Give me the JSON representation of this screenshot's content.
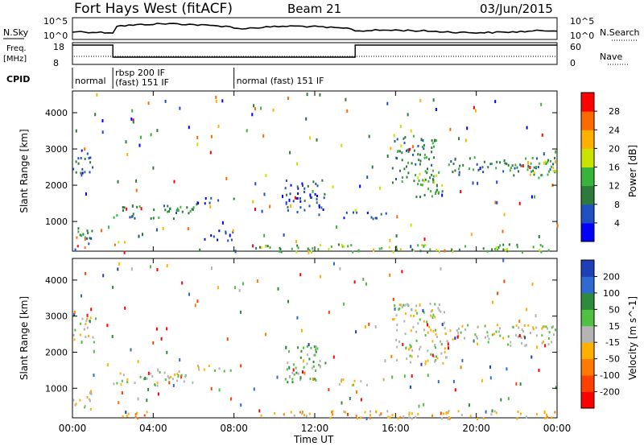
{
  "header": {
    "title": "Fort Hays West (fitACF)",
    "beam": "Beam 21",
    "date": "03/Jun/2015"
  },
  "top_panels": {
    "nsky_label": "N.Sky",
    "nsky_ticks": [
      "10^5",
      "10^0"
    ],
    "nsearch_label": "N.Search",
    "nsearch_ticks": [
      "10^5",
      "10^0"
    ],
    "freq_label": "Freq.",
    "freq_unit": "[MHz]",
    "freq_ticks": [
      "18",
      "8"
    ],
    "nave_label": "Nave",
    "nave_ticks": [
      "60",
      "0"
    ],
    "cpid_label": "CPID",
    "cpid_segments": [
      {
        "start_hr": 0,
        "end_hr": 2,
        "line1": "normal",
        "line2": ""
      },
      {
        "start_hr": 2,
        "end_hr": 8,
        "line1": "rbsp 200 IF",
        "line2": "(fast) 151 IF"
      },
      {
        "start_hr": 8,
        "end_hr": 24,
        "line1": "normal (fast) 151 IF",
        "line2": ""
      }
    ],
    "freq_steps": [
      {
        "start_hr": 0,
        "end_hr": 2,
        "mhz": 18
      },
      {
        "start_hr": 2,
        "end_hr": 14,
        "mhz": 10.5
      },
      {
        "start_hr": 14,
        "end_hr": 24,
        "mhz": 18
      }
    ]
  },
  "chart_data": [
    {
      "type": "heatmap",
      "name": "power",
      "ylabel": "Slant Range [km]",
      "yticks": [
        "1000",
        "2000",
        "3000",
        "4000"
      ],
      "ylim": [
        180,
        4600
      ],
      "xlim": [
        0,
        24
      ],
      "colorbar_label": "Power [dB]",
      "colorbar_ticks": [
        "4",
        "8",
        "12",
        "16",
        "20",
        "24",
        "28"
      ],
      "colors": [
        "#0000ff",
        "#1f4fc0",
        "#2e7a3c",
        "#38b43a",
        "#c8e400",
        "#ffb000",
        "#ff6a00",
        "#ff0000"
      ],
      "echo_regions": [
        {
          "t0": 0.0,
          "t1": 1.2,
          "r0": 2300,
          "r1": 3000,
          "level": 1
        },
        {
          "t0": 0.0,
          "t1": 1.0,
          "r0": 400,
          "r1": 1000,
          "level": 2
        },
        {
          "t0": 0.0,
          "t1": 0.6,
          "r0": 300,
          "r1": 600,
          "level": 6
        },
        {
          "t0": 2.0,
          "t1": 6.0,
          "r0": 1100,
          "r1": 1500,
          "level": 2
        },
        {
          "t0": 2.0,
          "t1": 2.6,
          "r0": 350,
          "r1": 600,
          "level": 5
        },
        {
          "t0": 6.0,
          "t1": 8.0,
          "r0": 1500,
          "r1": 1700,
          "level": 1
        },
        {
          "t0": 6.5,
          "t1": 8.0,
          "r0": 500,
          "r1": 800,
          "level": 1
        },
        {
          "t0": 10.5,
          "t1": 12.5,
          "r0": 1200,
          "r1": 2200,
          "level": 1
        },
        {
          "t0": 13.0,
          "t1": 15.5,
          "r0": 1100,
          "r1": 1300,
          "level": 1
        },
        {
          "t0": 15.8,
          "t1": 18.0,
          "r0": 2100,
          "r1": 3400,
          "level": 2
        },
        {
          "t0": 17.0,
          "t1": 18.5,
          "r0": 1700,
          "r1": 2500,
          "level": 3
        },
        {
          "t0": 18.5,
          "t1": 24.0,
          "r0": 2300,
          "r1": 2800,
          "level": 2
        },
        {
          "t0": 22.5,
          "t1": 24.0,
          "r0": 2200,
          "r1": 2700,
          "level": 4
        },
        {
          "t0": 9.0,
          "t1": 24.0,
          "r0": 180,
          "r1": 400,
          "level": 3
        }
      ]
    },
    {
      "type": "heatmap",
      "name": "velocity",
      "ylabel": "Slant Range [km]",
      "yticks": [
        "1000",
        "2000",
        "3000",
        "4000"
      ],
      "ylim": [
        180,
        4600
      ],
      "xlim": [
        0,
        24
      ],
      "xlabel": "Time UT",
      "xticks": [
        "00:00",
        "04:00",
        "08:00",
        "12:00",
        "16:00",
        "20:00",
        "00:00"
      ],
      "colorbar_label": "Velocity [m s^-1]",
      "colorbar_ticks": [
        "200",
        "100",
        "50",
        "15",
        "-15",
        "-50",
        "-100",
        "-200"
      ],
      "colors": [
        "#1f3fb8",
        "#2e6ad0",
        "#2e8a3c",
        "#50c040",
        "#b4b4b4",
        "#ffb000",
        "#ff7a00",
        "#ff4000",
        "#ff0000"
      ],
      "echo_regions": [
        {
          "t0": 0.0,
          "t1": 1.2,
          "r0": 2300,
          "r1": 3000,
          "level": 4
        },
        {
          "t0": 0.0,
          "t1": 1.0,
          "r0": 400,
          "r1": 1000,
          "level": 4
        },
        {
          "t0": 2.0,
          "t1": 6.0,
          "r0": 1100,
          "r1": 1500,
          "level": 4
        },
        {
          "t0": 2.0,
          "t1": 4.0,
          "r0": 200,
          "r1": 400,
          "level": 6
        },
        {
          "t0": 6.0,
          "t1": 8.0,
          "r0": 1500,
          "r1": 1700,
          "level": 4
        },
        {
          "t0": 10.5,
          "t1": 12.5,
          "r0": 1200,
          "r1": 2200,
          "level": 3
        },
        {
          "t0": 13.0,
          "t1": 15.5,
          "r0": 1100,
          "r1": 1300,
          "level": 4
        },
        {
          "t0": 15.8,
          "t1": 18.5,
          "r0": 1700,
          "r1": 3400,
          "level": 4
        },
        {
          "t0": 18.5,
          "t1": 24.0,
          "r0": 2200,
          "r1": 2800,
          "level": 4
        },
        {
          "t0": 9.0,
          "t1": 24.0,
          "r0": 180,
          "r1": 400,
          "level": 5
        }
      ]
    }
  ]
}
